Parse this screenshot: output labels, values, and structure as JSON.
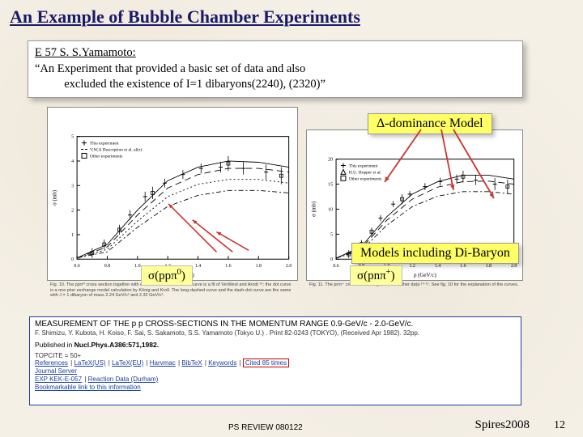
{
  "title": "An Example of Bubble Chamber Experiments",
  "infobox": {
    "line1": "E 57   S. S.Yamamoto:",
    "line2": "“An Experiment that provided a basic set of data and also",
    "line3": "          excluded the existence of I=1 dibaryons(2240), (2320)”"
  },
  "labels": {
    "delta_dominance": "Δ-dominance Model",
    "di_baryon": "Models including Di-Baryon",
    "sigma_left_pre": "σ(ppπ",
    "sigma_left_sup": "0",
    "sigma_left_post": ")",
    "sigma_right_pre": "σ(pnπ",
    "sigma_right_sup": "+",
    "sigma_right_post": ")"
  },
  "chart_left": {
    "type": "scatter-with-curves",
    "xlim": [
      0.6,
      2.0
    ],
    "ylim": [
      0,
      5
    ],
    "xticks": [
      0.6,
      0.8,
      1.0,
      1.2,
      1.4,
      1.6,
      1.8,
      2.0
    ],
    "yticks": [
      0,
      1,
      2,
      3,
      4,
      5
    ],
    "xlabel": "p (GeV/c)",
    "ylabel": "σ (mb)",
    "legend": [
      {
        "marker": "cross",
        "label": "This experiment"
      },
      {
        "marker": "dash",
        "label": "V,W,A  Description et al. al(π)"
      },
      {
        "marker": "square",
        "label": "Other experiments"
      }
    ],
    "points_this": [
      {
        "x": 0.95,
        "y": 1.8,
        "ey": 0.2
      },
      {
        "x": 1.05,
        "y": 2.55,
        "ey": 0.2
      },
      {
        "x": 1.18,
        "y": 3.1,
        "ey": 0.18
      },
      {
        "x": 1.3,
        "y": 3.45,
        "ey": 0.18
      },
      {
        "x": 1.42,
        "y": 3.7,
        "ey": 0.2
      },
      {
        "x": 1.55,
        "y": 3.75,
        "ey": 0.22
      },
      {
        "x": 1.7,
        "y": 3.7,
        "ey": 0.25
      },
      {
        "x": 1.85,
        "y": 3.55,
        "ey": 0.3
      }
    ],
    "points_other": [
      {
        "x": 0.7,
        "y": 0.25,
        "ey": 0.2
      },
      {
        "x": 0.78,
        "y": 0.6,
        "ey": 0.2
      },
      {
        "x": 0.88,
        "y": 1.2,
        "ey": 0.2
      },
      {
        "x": 1.1,
        "y": 2.7,
        "ey": 0.25
      },
      {
        "x": 1.6,
        "y": 3.9,
        "ey": 0.3
      },
      {
        "x": 1.95,
        "y": 3.4,
        "ey": 0.35
      }
    ],
    "curves": [
      {
        "name": "solid",
        "dash": "",
        "pts": [
          [
            0.6,
            0.05
          ],
          [
            0.8,
            0.6
          ],
          [
            1.0,
            2.0
          ],
          [
            1.2,
            3.2
          ],
          [
            1.4,
            3.75
          ],
          [
            1.6,
            4.0
          ],
          [
            1.8,
            3.95
          ],
          [
            2.0,
            3.75
          ]
        ]
      },
      {
        "name": "long-dash",
        "dash": "8,5",
        "pts": [
          [
            0.6,
            0.05
          ],
          [
            0.8,
            0.5
          ],
          [
            1.0,
            1.8
          ],
          [
            1.2,
            2.9
          ],
          [
            1.4,
            3.45
          ],
          [
            1.6,
            3.7
          ],
          [
            1.8,
            3.7
          ],
          [
            2.0,
            3.55
          ]
        ]
      },
      {
        "name": "dot",
        "dash": "2,3",
        "pts": [
          [
            0.6,
            0.05
          ],
          [
            0.8,
            0.4
          ],
          [
            1.0,
            1.55
          ],
          [
            1.2,
            2.55
          ],
          [
            1.4,
            3.05
          ],
          [
            1.6,
            3.25
          ],
          [
            1.8,
            3.25
          ],
          [
            2.0,
            3.1
          ]
        ]
      },
      {
        "name": "dash-dot",
        "dash": "6,3,2,3",
        "pts": [
          [
            0.6,
            0.05
          ],
          [
            0.8,
            0.3
          ],
          [
            1.0,
            1.3
          ],
          [
            1.2,
            2.15
          ],
          [
            1.4,
            2.6
          ],
          [
            1.6,
            2.8
          ],
          [
            1.8,
            2.8
          ],
          [
            2.0,
            2.7
          ]
        ]
      }
    ],
    "marker_color": "#000000",
    "curve_color": "#000000",
    "arrow_color": "#cc3333",
    "background": "#ffffff",
    "caption": "Fig. 10. The ppπ⁰ cross section together with other data ¹⁴⋅¹⁵. The solid curve is a fit of VerWest and Arndt ¹⁶; the dot curve is a one pion exchange model calculation by König and Kroll. The long-dashed curve and the dash-dot curve are the same with J = 1 dibaryon of mass 2.24 GeV/c² and 2.32 GeV/c²."
  },
  "chart_right": {
    "type": "scatter-with-curves",
    "xlim": [
      0.6,
      2.0
    ],
    "ylim": [
      0,
      20
    ],
    "xticks": [
      0.6,
      0.8,
      1.0,
      1.2,
      1.4,
      1.6,
      1.8,
      2.0
    ],
    "yticks": [
      0,
      5,
      10,
      15,
      20
    ],
    "xlabel": "p (GeV/c)",
    "ylabel": "σ (mb)",
    "legend": [
      {
        "marker": "cross",
        "label": "This experiment"
      },
      {
        "marker": "triangle",
        "label": "H.U. Hopper et al."
      },
      {
        "marker": "square",
        "label": "Other experiments"
      }
    ],
    "points_this": [
      {
        "x": 0.95,
        "y": 8.2,
        "ey": 0.6
      },
      {
        "x": 1.05,
        "y": 11.0,
        "ey": 0.6
      },
      {
        "x": 1.18,
        "y": 13.0,
        "ey": 0.6
      },
      {
        "x": 1.3,
        "y": 14.5,
        "ey": 0.7
      },
      {
        "x": 1.42,
        "y": 15.5,
        "ey": 0.8
      },
      {
        "x": 1.55,
        "y": 16.0,
        "ey": 0.9
      },
      {
        "x": 1.7,
        "y": 15.8,
        "ey": 1.0
      },
      {
        "x": 1.85,
        "y": 15.0,
        "ey": 1.2
      }
    ],
    "points_other": [
      {
        "x": 0.7,
        "y": 1.0,
        "ey": 0.8
      },
      {
        "x": 0.8,
        "y": 3.0,
        "ey": 0.8
      },
      {
        "x": 0.88,
        "y": 5.5,
        "ey": 0.8
      },
      {
        "x": 1.12,
        "y": 12.0,
        "ey": 1.0
      },
      {
        "x": 1.6,
        "y": 16.5,
        "ey": 1.2
      },
      {
        "x": 1.95,
        "y": 14.5,
        "ey": 1.4
      }
    ],
    "curves": [
      {
        "name": "solid",
        "dash": "",
        "pts": [
          [
            0.6,
            0.2
          ],
          [
            0.8,
            2.5
          ],
          [
            1.0,
            8.5
          ],
          [
            1.2,
            13.0
          ],
          [
            1.4,
            15.5
          ],
          [
            1.6,
            16.8
          ],
          [
            1.8,
            16.8
          ],
          [
            2.0,
            16.0
          ]
        ]
      },
      {
        "name": "long-dash",
        "dash": "8,5",
        "pts": [
          [
            0.6,
            0.2
          ],
          [
            0.8,
            2.2
          ],
          [
            1.0,
            7.8
          ],
          [
            1.2,
            12.0
          ],
          [
            1.4,
            14.4
          ],
          [
            1.6,
            15.5
          ],
          [
            1.8,
            15.6
          ],
          [
            2.0,
            15.0
          ]
        ]
      },
      {
        "name": "dash-dot",
        "dash": "6,3,2,3",
        "pts": [
          [
            0.6,
            0.2
          ],
          [
            0.8,
            1.8
          ],
          [
            1.0,
            6.8
          ],
          [
            1.2,
            10.5
          ],
          [
            1.4,
            12.6
          ],
          [
            1.6,
            13.5
          ],
          [
            1.8,
            13.5
          ],
          [
            2.0,
            13.0
          ]
        ]
      }
    ],
    "marker_color": "#000000",
    "curve_color": "#000000",
    "arrow_color": "#cc3333",
    "background": "#ffffff",
    "caption": "Fig. 11. The pnπ⁺ cross section together with other data ¹⁴⋅¹⁵. See fig. 10 for the explanation of the curves."
  },
  "spires": {
    "title": "MEASUREMENT OF THE p p CROSS-SECTIONS IN THE MOMENTUM RANGE 0.9-GeV/c - 2.0-GeV/c.",
    "authors": "F. Shimizu, Y. Kubota, H. Koiso, F. Sai, S. Sakamoto, S.S. Yamamoto (Tokyo U.) . Print 82-0243 (TOKYO), (Received Apr 1982). 32pp.",
    "published": "Published in Nucl.Phys.A386:571,1982.",
    "topcite": "TOPCITE = 50+",
    "link_row1": [
      "References",
      "LaTeX(US)",
      "LaTeX(EU)",
      "Harvmac",
      "BibTeX",
      "Keywords"
    ],
    "cited": "Cited 85 times",
    "link_row2_a": [
      "Journal Server"
    ],
    "link_row2_b": [
      "EXP KEK-E-057",
      "Reaction Data (Durham)"
    ],
    "link_row3": [
      "Bookmarkable link to this information"
    ]
  },
  "footer": {
    "review": "PS REVIEW 080122",
    "spires_year": "Spires2008",
    "page": "12"
  },
  "colors": {
    "title": "#1a1a6a",
    "highlight_bg": "#ffff66",
    "arrow": "#cc3333",
    "spires_border": "#1a3f9e"
  }
}
